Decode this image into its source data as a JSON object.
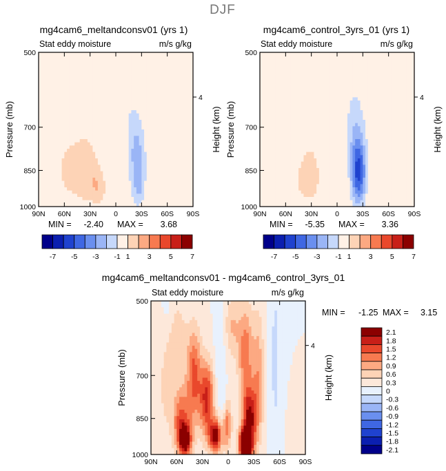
{
  "figure": {
    "title": "DJF"
  },
  "colors": {
    "page": "#ffffff",
    "scale_main": [
      "#00008a",
      "#0b1fb0",
      "#1f42cf",
      "#3f67e3",
      "#6a8fef",
      "#9ab5f6",
      "#c6d8fb",
      "#fff1e6",
      "#fdd3b6",
      "#fca982",
      "#f77a50",
      "#e9482c",
      "#c81f18",
      "#8b0000"
    ],
    "scale_diff": [
      "#00008a",
      "#0b1fb0",
      "#1f42cf",
      "#3f67e3",
      "#6a8fef",
      "#9ab5f6",
      "#c6d8fb",
      "#e8f1fd",
      "#fde8da",
      "#fdd3b6",
      "#fca982",
      "#f77a50",
      "#e9482c",
      "#c81f18",
      "#8b0000"
    ]
  },
  "chart_data": [
    {
      "type": "heatmap",
      "title": "mg4cam6_meltandconsv01 (yrs 1)",
      "field": "Stat eddy moisture",
      "units": "m/s g/kg",
      "xlabel": "",
      "ylabel": "Pressure (mb)",
      "ylabel_right": "Height (km)",
      "x_ticks": [
        "90N",
        "60N",
        "30N",
        "0",
        "30S",
        "60S",
        "90S"
      ],
      "y_ticks": [
        "500",
        "700",
        "850",
        "1000"
      ],
      "y_right_ticks": [
        "4"
      ],
      "xlim": [
        90,
        -90
      ],
      "ylim": [
        1000,
        500
      ],
      "y_scale": "log",
      "grid": false,
      "stats": {
        "min_label": "MIN =",
        "min": "-2.40",
        "max_label": "MAX =",
        "max": "3.68"
      },
      "features": [
        {
          "lat": 75,
          "p": 560,
          "sx": 9,
          "sy": 0.1,
          "v": 0.55
        },
        {
          "lat": 35,
          "p": 600,
          "sx": 14,
          "sy": 0.16,
          "v": 0.7
        },
        {
          "lat": 55,
          "p": 850,
          "sx": 14,
          "sy": 0.12,
          "v": 1.2
        },
        {
          "lat": 32,
          "p": 860,
          "sx": 10,
          "sy": 0.1,
          "v": 1.5
        },
        {
          "lat": 20,
          "p": 920,
          "sx": 6,
          "sy": 0.06,
          "v": 1.3
        },
        {
          "lat": 5,
          "p": 950,
          "sx": 5,
          "sy": 0.05,
          "v": 0.7
        },
        {
          "lat": -25,
          "p": 800,
          "sx": 7,
          "sy": 0.12,
          "v": -2.4
        },
        {
          "lat": -27,
          "p": 920,
          "sx": 5,
          "sy": 0.06,
          "v": -1.2
        },
        {
          "lat": -15,
          "p": 600,
          "sx": 8,
          "sy": 0.2,
          "v": -0.8
        },
        {
          "lat": -60,
          "p": 650,
          "sx": 12,
          "sy": 0.25,
          "v": -0.5
        },
        {
          "lat": -75,
          "p": 880,
          "sx": 5,
          "sy": 0.1,
          "v": 0.4
        }
      ]
    },
    {
      "type": "heatmap",
      "title": "mg4cam6_control_3yrs_01 (yrs 1)",
      "field": "Stat eddy moisture",
      "units": "m/s g/kg",
      "xlabel": "",
      "ylabel": "Pressure (mb)",
      "ylabel_right": "Height (km)",
      "x_ticks": [
        "90N",
        "60N",
        "30N",
        "0",
        "30S",
        "60S",
        "90S"
      ],
      "y_ticks": [
        "500",
        "700",
        "850",
        "1000"
      ],
      "y_right_ticks": [
        "4"
      ],
      "xlim": [
        90,
        -90
      ],
      "ylim": [
        1000,
        500
      ],
      "y_scale": "log",
      "grid": false,
      "stats": {
        "min_label": "MIN =",
        "min": "-5.35",
        "max_label": "MAX =",
        "max": "3.36"
      },
      "features": [
        {
          "lat": 70,
          "p": 600,
          "sx": 8,
          "sy": 0.15,
          "v": 0.45
        },
        {
          "lat": 40,
          "p": 640,
          "sx": 10,
          "sy": 0.15,
          "v": 0.45
        },
        {
          "lat": 30,
          "p": 870,
          "sx": 9,
          "sy": 0.1,
          "v": 1.5
        },
        {
          "lat": 45,
          "p": 900,
          "sx": 7,
          "sy": 0.08,
          "v": 0.7
        },
        {
          "lat": -25,
          "p": 860,
          "sx": 6,
          "sy": 0.1,
          "v": -5.0
        },
        {
          "lat": -22,
          "p": 720,
          "sx": 8,
          "sy": 0.12,
          "v": -1.6
        },
        {
          "lat": -15,
          "p": 560,
          "sx": 10,
          "sy": 0.15,
          "v": -0.5
        },
        {
          "lat": -60,
          "p": 650,
          "sx": 14,
          "sy": 0.3,
          "v": -0.5
        },
        {
          "lat": -55,
          "p": 600,
          "sx": 5,
          "sy": 0.2,
          "v": 0.45
        },
        {
          "lat": -75,
          "p": 880,
          "sx": 5,
          "sy": 0.1,
          "v": 0.45
        }
      ]
    },
    {
      "type": "heatmap",
      "title": "mg4cam6_meltandconsv01 - mg4cam6_control_3yrs_01",
      "field": "Stat eddy moisture",
      "units": "m/s g/kg",
      "xlabel": "",
      "ylabel": "Pressure (mb)",
      "ylabel_right": "Height (km)",
      "x_ticks": [
        "90N",
        "60N",
        "30N",
        "0",
        "30S",
        "60S",
        "90S"
      ],
      "y_ticks": [
        "500",
        "700",
        "850",
        "1000"
      ],
      "y_right_ticks": [
        "4"
      ],
      "xlim": [
        90,
        -90
      ],
      "ylim": [
        1000,
        500
      ],
      "y_scale": "log",
      "grid": false,
      "stats": {
        "min_label": "MIN =",
        "min": "-1.25",
        "max_label": "MAX =",
        "max": "3.15"
      },
      "features": [
        {
          "lat": 55,
          "p": 860,
          "sx": 7,
          "sy": 0.1,
          "v": 1.3
        },
        {
          "lat": 50,
          "p": 940,
          "sx": 5,
          "sy": 0.05,
          "v": 1.9
        },
        {
          "lat": 40,
          "p": 700,
          "sx": 6,
          "sy": 0.15,
          "v": 1.3
        },
        {
          "lat": 25,
          "p": 780,
          "sx": 6,
          "sy": 0.12,
          "v": 1.6
        },
        {
          "lat": 15,
          "p": 920,
          "sx": 5,
          "sy": 0.05,
          "v": 2.0
        },
        {
          "lat": 2,
          "p": 870,
          "sx": 4,
          "sy": 0.08,
          "v": 1.2
        },
        {
          "lat": -20,
          "p": 960,
          "sx": 5,
          "sy": 0.05,
          "v": 3.1
        },
        {
          "lat": -25,
          "p": 850,
          "sx": 6,
          "sy": 0.1,
          "v": 1.8
        },
        {
          "lat": -20,
          "p": 630,
          "sx": 6,
          "sy": 0.15,
          "v": 1.1
        },
        {
          "lat": -35,
          "p": 700,
          "sx": 5,
          "sy": 0.2,
          "v": 0.8
        },
        {
          "lat": -5,
          "p": 560,
          "sx": 6,
          "sy": 0.1,
          "v": 0.6
        },
        {
          "lat": 60,
          "p": 600,
          "sx": 8,
          "sy": 0.15,
          "v": 0.5
        },
        {
          "lat": 75,
          "p": 750,
          "sx": 6,
          "sy": 0.2,
          "v": 0.3
        },
        {
          "lat": 10,
          "p": 650,
          "sx": 4,
          "sy": 0.15,
          "v": -0.3
        },
        {
          "lat": 5,
          "p": 820,
          "sx": 3,
          "sy": 0.08,
          "v": -0.5
        },
        {
          "lat": -55,
          "p": 650,
          "sx": 6,
          "sy": 0.4,
          "v": -0.35
        },
        {
          "lat": -75,
          "p": 900,
          "sx": 4,
          "sy": 0.1,
          "v": 0.3
        },
        {
          "lat": 70,
          "p": 520,
          "sx": 5,
          "sy": 0.08,
          "v": -0.2
        }
      ]
    }
  ],
  "colorbars": [
    {
      "for": "top-panels",
      "levels": [
        -7,
        -6,
        -5,
        -4,
        -3,
        -2,
        -1,
        1,
        2,
        3,
        4,
        5,
        6,
        7
      ],
      "labels": [
        "-7",
        "-5",
        "-3",
        "-1",
        "1",
        "3",
        "5",
        "7"
      ]
    },
    {
      "for": "difference",
      "levels": [
        -2.1,
        -1.8,
        -1.5,
        -1.2,
        -0.9,
        -0.6,
        -0.3,
        0,
        0.3,
        0.6,
        0.9,
        1.2,
        1.5,
        1.8,
        2.1
      ],
      "labels": [
        "2.1",
        "1.8",
        "1.5",
        "1.2",
        "0.9",
        "0.6",
        "0.3",
        "0",
        "-0.3",
        "-0.6",
        "-0.9",
        "-1.2",
        "-1.5",
        "-1.8",
        "-2.1"
      ]
    }
  ]
}
